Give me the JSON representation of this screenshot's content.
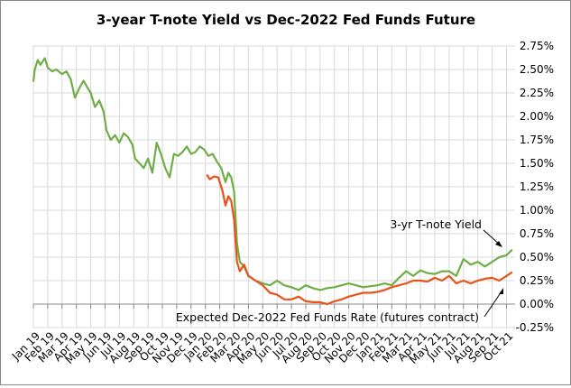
{
  "chart_data": {
    "type": "line",
    "title": "3-year T-note Yield vs Dec-2022 Fed Funds Future",
    "xlabel": "",
    "ylabel": "",
    "ylim": [
      -0.25,
      2.75
    ],
    "y_ticks": [
      "2.75%",
      "2.50%",
      "2.25%",
      "2.00%",
      "1.75%",
      "1.50%",
      "1.25%",
      "1.00%",
      "0.75%",
      "0.50%",
      "0.25%",
      "0.00%",
      "-0.25%"
    ],
    "y_tick_values": [
      2.75,
      2.5,
      2.25,
      2.0,
      1.75,
      1.5,
      1.25,
      1.0,
      0.75,
      0.5,
      0.25,
      0.0,
      -0.25
    ],
    "x_tick_labels": [
      "Jan 19",
      "Feb 19",
      "Mar 19",
      "Apr 19",
      "May 19",
      "Jun 19",
      "Jul 19",
      "Aug 19",
      "Sep 19",
      "Oct 19",
      "Nov 19",
      "Dec 19",
      "Jan 20",
      "Feb 20",
      "Mar 20",
      "Apr 20",
      "May 20",
      "Jun 20",
      "Jul 20",
      "Aug 20",
      "Sep 20",
      "Oct 20",
      "Nov 20",
      "Dec 20",
      "Jan 21",
      "Feb 21",
      "Mar 21",
      "Apr 21",
      "May 21",
      "Jun 21",
      "Jul 21",
      "Aug 21",
      "Sep 21",
      "Oct 21"
    ],
    "x_unit": "months since Jan 2019",
    "grid": true,
    "series": [
      {
        "name": "3-yr T-note Yield",
        "color": "#70ad47",
        "x": [
          0,
          0.1,
          0.3,
          0.5,
          0.8,
          1.0,
          1.3,
          1.6,
          2.0,
          2.3,
          2.6,
          2.9,
          3.2,
          3.5,
          3.8,
          4.0,
          4.3,
          4.6,
          4.9,
          5.1,
          5.4,
          5.7,
          6.0,
          6.3,
          6.6,
          6.9,
          7.1,
          7.4,
          7.7,
          8.0,
          8.3,
          8.6,
          8.9,
          9.2,
          9.5,
          9.8,
          10.1,
          10.4,
          10.7,
          11.0,
          11.3,
          11.6,
          11.9,
          12.2,
          12.5,
          12.8,
          13.1,
          13.4,
          13.6,
          13.8,
          14.0,
          14.2,
          14.4,
          14.7,
          15.0,
          15.5,
          16.0,
          16.5,
          17.0,
          17.5,
          18.0,
          18.5,
          19.0,
          19.5,
          20.0,
          20.5,
          21.0,
          21.5,
          22.0,
          22.5,
          23.0,
          23.5,
          24.0,
          24.5,
          25.0,
          25.5,
          26.0,
          26.5,
          27.0,
          27.5,
          28.0,
          28.5,
          29.0,
          29.5,
          30.0,
          30.5,
          31.0,
          31.5,
          32.0,
          32.5,
          33.0,
          33.4
        ],
        "values": [
          2.37,
          2.5,
          2.6,
          2.55,
          2.62,
          2.52,
          2.48,
          2.5,
          2.45,
          2.48,
          2.4,
          2.2,
          2.3,
          2.38,
          2.3,
          2.25,
          2.1,
          2.17,
          2.05,
          1.85,
          1.75,
          1.8,
          1.72,
          1.82,
          1.78,
          1.7,
          1.55,
          1.5,
          1.45,
          1.55,
          1.4,
          1.72,
          1.6,
          1.45,
          1.35,
          1.6,
          1.58,
          1.62,
          1.68,
          1.6,
          1.62,
          1.68,
          1.65,
          1.58,
          1.6,
          1.52,
          1.45,
          1.3,
          1.4,
          1.35,
          1.2,
          0.65,
          0.45,
          0.4,
          0.3,
          0.25,
          0.22,
          0.2,
          0.25,
          0.2,
          0.18,
          0.15,
          0.2,
          0.17,
          0.15,
          0.17,
          0.18,
          0.2,
          0.22,
          0.2,
          0.18,
          0.19,
          0.2,
          0.22,
          0.2,
          0.28,
          0.35,
          0.3,
          0.36,
          0.33,
          0.32,
          0.35,
          0.35,
          0.3,
          0.48,
          0.42,
          0.45,
          0.4,
          0.45,
          0.5,
          0.52,
          0.58
        ]
      },
      {
        "name": "Expected Dec-2022 Fed Funds Rate (futures contract)",
        "color": "#e8531a",
        "x": [
          12.1,
          12.3,
          12.6,
          12.9,
          13.2,
          13.4,
          13.6,
          13.8,
          14.0,
          14.2,
          14.4,
          14.7,
          15.0,
          15.5,
          16.0,
          16.5,
          17.0,
          17.5,
          18.0,
          18.5,
          19.0,
          19.5,
          20.0,
          20.5,
          21.0,
          21.5,
          22.0,
          22.5,
          23.0,
          23.5,
          24.0,
          24.5,
          25.0,
          25.5,
          26.0,
          26.5,
          27.0,
          27.5,
          28.0,
          28.5,
          29.0,
          29.5,
          30.0,
          30.5,
          31.0,
          31.5,
          32.0,
          32.5,
          33.0,
          33.4
        ],
        "values": [
          1.38,
          1.33,
          1.36,
          1.35,
          1.2,
          1.05,
          1.15,
          1.1,
          0.9,
          0.45,
          0.35,
          0.42,
          0.3,
          0.25,
          0.2,
          0.12,
          0.1,
          0.05,
          0.05,
          0.08,
          0.03,
          0.02,
          0.02,
          0.0,
          0.03,
          0.05,
          0.08,
          0.1,
          0.12,
          0.12,
          0.13,
          0.15,
          0.18,
          0.2,
          0.22,
          0.25,
          0.25,
          0.24,
          0.28,
          0.25,
          0.3,
          0.22,
          0.25,
          0.22,
          0.25,
          0.27,
          0.28,
          0.25,
          0.3,
          0.34
        ]
      }
    ],
    "annotations": [
      {
        "text": "3-yr T-note Yield",
        "points_to": "3-yr T-note Yield"
      },
      {
        "text": "Expected Dec-2022 Fed Funds Rate (futures contract)",
        "points_to": "Expected Dec-2022 Fed Funds Rate (futures contract)"
      }
    ]
  }
}
